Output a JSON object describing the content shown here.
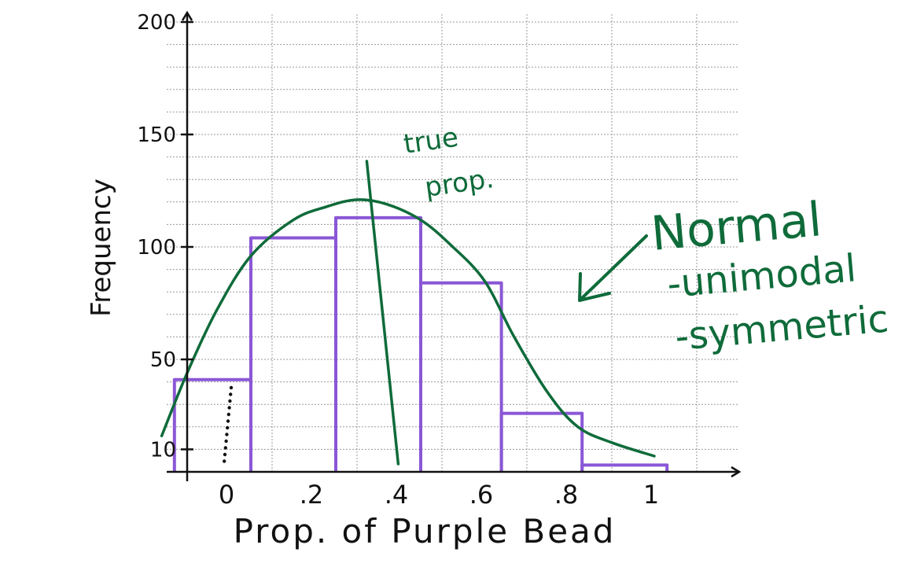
{
  "colors": {
    "bars": "#8a57d6",
    "curve": "#0f6b3a",
    "axis": "#111111",
    "grid": "#9a9a9a"
  },
  "chart_data": {
    "type": "bar",
    "title": "",
    "xlabel": "Prop. of Purple Bead",
    "ylabel": "Frequency",
    "y_ticks": [
      {
        "value": 200,
        "label": "200"
      },
      {
        "value": 150,
        "label": "150"
      },
      {
        "value": 100,
        "label": "100"
      },
      {
        "value": 50,
        "label": "50"
      },
      {
        "value": 10,
        "label": "10"
      }
    ],
    "x_ticks": [
      {
        "value": 0,
        "label": "0"
      },
      {
        "value": 0.2,
        "label": ".2"
      },
      {
        "value": 0.4,
        "label": ".4"
      },
      {
        "value": 0.6,
        "label": ".6"
      },
      {
        "value": 0.8,
        "label": ".8"
      },
      {
        "value": 1,
        "label": "1"
      }
    ],
    "xlim": [
      -0.03,
      1.2
    ],
    "ylim": [
      0,
      200
    ],
    "grid": true,
    "bins": [
      {
        "start": -0.03,
        "end": 0.15,
        "value": 41
      },
      {
        "start": 0.15,
        "end": 0.35,
        "value": 104
      },
      {
        "start": 0.35,
        "end": 0.55,
        "value": 113
      },
      {
        "start": 0.55,
        "end": 0.74,
        "value": 84
      },
      {
        "start": 0.74,
        "end": 0.93,
        "value": 26
      },
      {
        "start": 0.93,
        "end": 1.13,
        "value": 3
      }
    ],
    "curve": [
      [
        -0.06,
        16
      ],
      [
        0.0,
        44
      ],
      [
        0.07,
        72
      ],
      [
        0.15,
        96
      ],
      [
        0.25,
        112
      ],
      [
        0.33,
        118
      ],
      [
        0.4,
        121
      ],
      [
        0.47,
        119
      ],
      [
        0.55,
        112
      ],
      [
        0.62,
        101
      ],
      [
        0.7,
        85
      ],
      [
        0.77,
        60
      ],
      [
        0.85,
        35
      ],
      [
        0.92,
        20
      ],
      [
        1.0,
        13
      ],
      [
        1.1,
        7
      ]
    ],
    "true_prop": 0.46,
    "annotations": {
      "true_prop_label_1": "true",
      "true_prop_label_2": "prop.",
      "shape_1": "Normal",
      "shape_2": "-unimodal",
      "shape_3": "-symmetric"
    }
  }
}
